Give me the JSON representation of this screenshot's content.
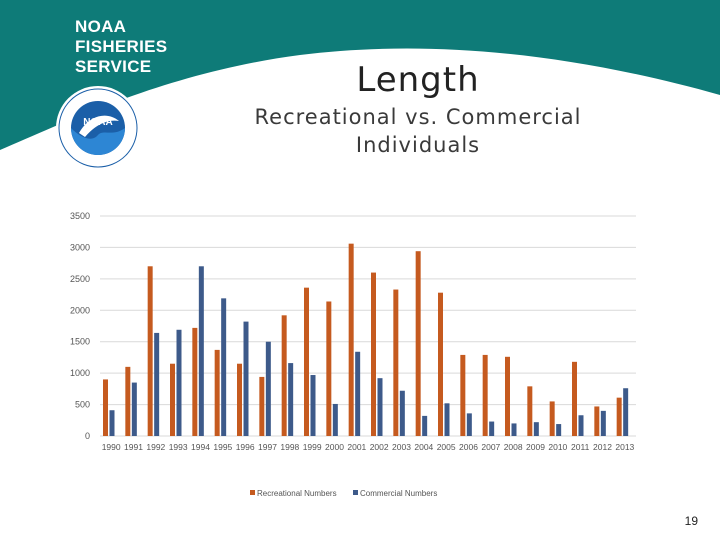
{
  "logo": {
    "lines": [
      "NOAA",
      "FISHERIES",
      "SERVICE"
    ],
    "seal_text": "NOAA"
  },
  "title": "Length",
  "subtitle_lines": [
    "Recreational vs. Commercial",
    "Individuals"
  ],
  "page_number": "19",
  "colors": {
    "header": "#0e7b78",
    "recreational": "#c55a1f",
    "commercial": "#3d5a8a"
  },
  "chart_data": {
    "type": "bar",
    "title": "",
    "xlabel": "",
    "ylabel": "",
    "ylim": [
      0,
      3500
    ],
    "yticks": [
      0,
      500,
      1000,
      1500,
      2000,
      2500,
      3000,
      3500
    ],
    "grid": true,
    "legend_position": "bottom",
    "categories": [
      "1990",
      "1991",
      "1992",
      "1993",
      "1994",
      "1995",
      "1996",
      "1997",
      "1998",
      "1999",
      "2000",
      "2001",
      "2002",
      "2003",
      "2004",
      "2005",
      "2006",
      "2007",
      "2008",
      "2009",
      "2010",
      "2011",
      "2012",
      "2013"
    ],
    "series": [
      {
        "name": "Recreational Numbers",
        "color": "#c55a1f",
        "values": [
          900,
          1100,
          2700,
          1150,
          1720,
          1370,
          1150,
          940,
          1920,
          2360,
          2140,
          3060,
          2600,
          2330,
          2940,
          2280,
          1290,
          1290,
          1260,
          790,
          550,
          1180,
          470,
          610
        ]
      },
      {
        "name": "Commercial Numbers",
        "color": "#3d5a8a",
        "values": [
          410,
          850,
          1640,
          1690,
          2700,
          2190,
          1820,
          1500,
          1160,
          970,
          510,
          1340,
          920,
          720,
          320,
          520,
          360,
          230,
          200,
          220,
          190,
          330,
          400,
          760
        ]
      }
    ]
  }
}
